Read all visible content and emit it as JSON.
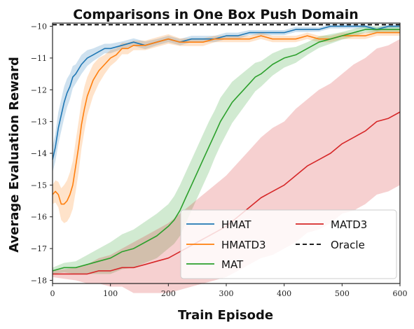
{
  "chart_data": {
    "type": "line",
    "title": "Comparisons in One Box Push Domain",
    "xlabel": "Train Episode",
    "ylabel": "Average Evaluation Reward",
    "xlim": [
      0,
      600
    ],
    "ylim": [
      -18.1,
      -9.9
    ],
    "xticks": [
      0,
      100,
      200,
      300,
      400,
      500,
      600
    ],
    "yticks": [
      -10,
      -11,
      -12,
      -13,
      -14,
      -15,
      -16,
      -17,
      -18
    ],
    "xtick_labels": [
      "0",
      "100",
      "200",
      "300",
      "400",
      "500",
      "600"
    ],
    "ytick_labels": [
      "−10",
      "−11",
      "−12",
      "−13",
      "−14",
      "−15",
      "−16",
      "−17",
      "−18"
    ],
    "grid": false,
    "legend_position": "lower-right",
    "series": [
      {
        "name": "HMAT",
        "color": "#1f77b4",
        "style": "solid",
        "x": [
          0,
          5,
          10,
          15,
          20,
          25,
          30,
          35,
          40,
          50,
          60,
          70,
          80,
          90,
          100,
          120,
          140,
          160,
          180,
          200,
          220,
          240,
          260,
          280,
          300,
          320,
          340,
          360,
          380,
          400,
          420,
          440,
          460,
          480,
          500,
          520,
          540,
          560,
          580,
          600
        ],
        "y": [
          -14.2,
          -13.8,
          -13.2,
          -12.8,
          -12.4,
          -12.1,
          -11.9,
          -11.6,
          -11.5,
          -11.2,
          -11.0,
          -10.9,
          -10.8,
          -10.7,
          -10.7,
          -10.6,
          -10.5,
          -10.6,
          -10.5,
          -10.4,
          -10.5,
          -10.4,
          -10.4,
          -10.4,
          -10.3,
          -10.3,
          -10.2,
          -10.2,
          -10.2,
          -10.2,
          -10.1,
          -10.1,
          -10.1,
          -10.0,
          -10.0,
          -10.0,
          -10.0,
          -10.1,
          -10.0,
          -10.0
        ],
        "band_halfwidth": [
          0.4,
          0.45,
          0.5,
          0.5,
          0.5,
          0.45,
          0.4,
          0.35,
          0.3,
          0.3,
          0.25,
          0.2,
          0.18,
          0.15,
          0.15,
          0.12,
          0.12,
          0.12,
          0.1,
          0.1,
          0.1,
          0.1,
          0.1,
          0.1,
          0.1,
          0.1,
          0.08,
          0.08,
          0.08,
          0.08,
          0.08,
          0.08,
          0.07,
          0.07,
          0.07,
          0.07,
          0.06,
          0.06,
          0.06,
          0.06
        ]
      },
      {
        "name": "HMATD3",
        "color": "#ff7f0e",
        "style": "solid",
        "x": [
          0,
          5,
          10,
          15,
          20,
          25,
          30,
          35,
          40,
          45,
          50,
          55,
          60,
          70,
          80,
          90,
          100,
          110,
          120,
          130,
          140,
          160,
          180,
          200,
          220,
          240,
          260,
          280,
          300,
          320,
          340,
          360,
          380,
          400,
          420,
          440,
          460,
          480,
          500,
          520,
          540,
          560,
          580,
          600
        ],
        "y": [
          -15.3,
          -15.2,
          -15.3,
          -15.6,
          -15.6,
          -15.5,
          -15.3,
          -15.0,
          -14.4,
          -13.8,
          -13.1,
          -12.6,
          -12.2,
          -11.7,
          -11.4,
          -11.2,
          -11.0,
          -10.9,
          -10.7,
          -10.7,
          -10.6,
          -10.6,
          -10.5,
          -10.4,
          -10.5,
          -10.5,
          -10.5,
          -10.4,
          -10.4,
          -10.4,
          -10.4,
          -10.3,
          -10.4,
          -10.4,
          -10.4,
          -10.3,
          -10.4,
          -10.4,
          -10.3,
          -10.3,
          -10.3,
          -10.2,
          -10.2,
          -10.2
        ],
        "band_halfwidth": [
          0.3,
          0.35,
          0.4,
          0.5,
          0.6,
          0.65,
          0.7,
          0.75,
          0.8,
          0.8,
          0.75,
          0.7,
          0.6,
          0.5,
          0.4,
          0.3,
          0.25,
          0.2,
          0.18,
          0.18,
          0.15,
          0.15,
          0.15,
          0.15,
          0.12,
          0.12,
          0.12,
          0.1,
          0.1,
          0.1,
          0.1,
          0.1,
          0.1,
          0.1,
          0.1,
          0.1,
          0.1,
          0.1,
          0.1,
          0.1,
          0.1,
          0.1,
          0.1,
          0.1
        ]
      },
      {
        "name": "MAT",
        "color": "#2ca02c",
        "style": "solid",
        "x": [
          0,
          20,
          40,
          60,
          80,
          100,
          120,
          140,
          160,
          180,
          200,
          210,
          220,
          230,
          240,
          250,
          260,
          270,
          280,
          290,
          300,
          310,
          320,
          330,
          340,
          350,
          360,
          380,
          400,
          420,
          440,
          460,
          480,
          500,
          520,
          540,
          560,
          580,
          600
        ],
        "y": [
          -17.7,
          -17.6,
          -17.6,
          -17.5,
          -17.4,
          -17.3,
          -17.1,
          -17.0,
          -16.8,
          -16.6,
          -16.3,
          -16.1,
          -15.8,
          -15.4,
          -15.0,
          -14.6,
          -14.2,
          -13.8,
          -13.4,
          -13.0,
          -12.7,
          -12.4,
          -12.2,
          -12.0,
          -11.8,
          -11.6,
          -11.5,
          -11.2,
          -11.0,
          -10.9,
          -10.7,
          -10.5,
          -10.4,
          -10.3,
          -10.2,
          -10.1,
          -10.1,
          -10.1,
          -10.1
        ],
        "band_halfwidth": [
          0.1,
          0.15,
          0.2,
          0.3,
          0.4,
          0.5,
          0.55,
          0.6,
          0.65,
          0.7,
          0.7,
          0.75,
          0.8,
          0.8,
          0.8,
          0.8,
          0.8,
          0.8,
          0.75,
          0.75,
          0.7,
          0.65,
          0.6,
          0.55,
          0.5,
          0.45,
          0.4,
          0.35,
          0.3,
          0.25,
          0.2,
          0.18,
          0.15,
          0.12,
          0.12,
          0.1,
          0.1,
          0.1,
          0.1
        ]
      },
      {
        "name": "MATD3",
        "color": "#d62728",
        "style": "solid",
        "x": [
          0,
          20,
          40,
          60,
          80,
          100,
          120,
          140,
          160,
          180,
          200,
          220,
          240,
          260,
          280,
          300,
          320,
          340,
          360,
          380,
          400,
          420,
          440,
          460,
          480,
          500,
          520,
          540,
          560,
          580,
          600
        ],
        "y": [
          -17.8,
          -17.8,
          -17.8,
          -17.8,
          -17.7,
          -17.7,
          -17.6,
          -17.6,
          -17.5,
          -17.4,
          -17.3,
          -17.1,
          -16.9,
          -16.7,
          -16.5,
          -16.3,
          -16.0,
          -15.7,
          -15.4,
          -15.2,
          -15.0,
          -14.7,
          -14.4,
          -14.2,
          -14.0,
          -13.7,
          -13.5,
          -13.3,
          -13.0,
          -12.9,
          -12.7
        ],
        "band_halfwidth": [
          0.1,
          0.15,
          0.2,
          0.3,
          0.4,
          0.5,
          0.6,
          0.8,
          0.9,
          1.0,
          1.1,
          1.2,
          1.3,
          1.4,
          1.5,
          1.6,
          1.7,
          1.8,
          1.9,
          2.0,
          2.0,
          2.1,
          2.1,
          2.2,
          2.2,
          2.2,
          2.3,
          2.3,
          2.3,
          2.3,
          2.3
        ]
      },
      {
        "name": "Oracle",
        "color": "#000000",
        "style": "dashed",
        "x": [
          0,
          600
        ],
        "y": [
          -9.95,
          -9.95
        ]
      }
    ]
  }
}
